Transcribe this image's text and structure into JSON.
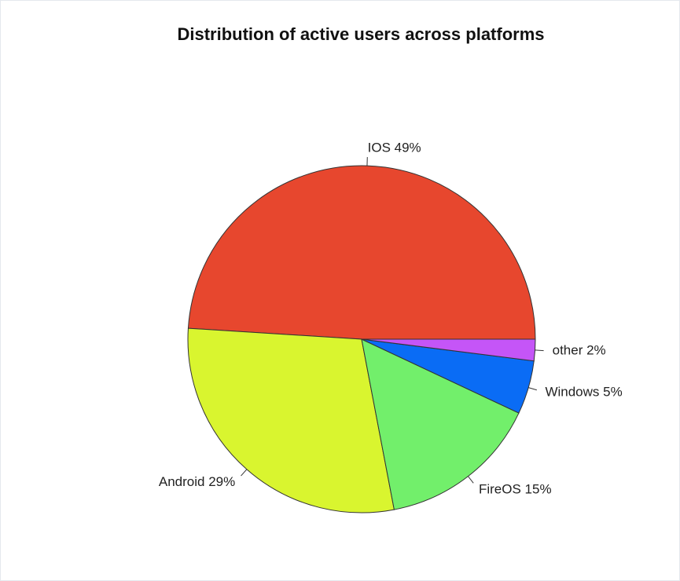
{
  "chart_data": {
    "type": "pie",
    "title": "Distribution of active users across platforms",
    "values": [
      49,
      29,
      15,
      5,
      2
    ],
    "value_labels": [
      "IOS 49%",
      "Android 29%",
      "FireOS 15%",
      "Windows 5%",
      "other 2%"
    ],
    "colors": [
      "#e7472e",
      "#d9f52f",
      "#72ef6b",
      "#0a6cf5",
      "#c555f7"
    ]
  }
}
